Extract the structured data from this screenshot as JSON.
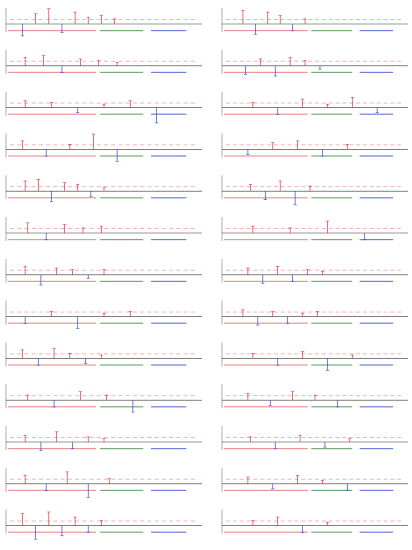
{
  "figure": {
    "caption": ""
  },
  "colors": {
    "positive": "#e0303a",
    "negative": "#2f4bd0",
    "baseline": "#333333",
    "grid_label": "#e66a6a",
    "mass_label": "#3a8a3a",
    "info_text": "#2f4bd0"
  },
  "chart_data": [
    {
      "type": "stem",
      "panel": "left-1",
      "x": [
        108,
        118,
        128,
        138,
        148,
        158,
        168,
        178
      ],
      "y": [
        -0.35,
        0.3,
        0.45,
        -0.25,
        0.35,
        0.2,
        0.25,
        0.15
      ]
    },
    {
      "type": "stem",
      "panel": "right-1",
      "x": [
        112,
        122,
        132,
        142,
        152,
        162
      ],
      "y": [
        0.4,
        -0.3,
        0.35,
        0.25,
        -0.2,
        0.15
      ]
    },
    {
      "type": "stem",
      "panel": "left-2",
      "x": [
        110,
        124,
        138,
        152,
        166,
        180
      ],
      "y": [
        0.25,
        0.3,
        -0.2,
        0.2,
        0.15,
        0.1
      ]
    },
    {
      "type": "stem",
      "panel": "right-2",
      "x": [
        114,
        126,
        138,
        150,
        162,
        174
      ],
      "y": [
        -0.25,
        0.2,
        -0.3,
        0.25,
        0.15,
        -0.1
      ]
    },
    {
      "type": "stem",
      "panel": "left-3",
      "x": [
        110,
        130,
        150,
        170,
        190,
        210
      ],
      "y": [
        0.2,
        0.15,
        -0.15,
        0.1,
        0.2,
        -0.45
      ]
    },
    {
      "type": "stem",
      "panel": "right-3",
      "x": [
        120,
        140,
        160,
        180,
        200,
        220
      ],
      "y": [
        0.15,
        -0.2,
        0.25,
        0.1,
        0.3,
        -0.15
      ]
    },
    {
      "type": "stem",
      "panel": "left-4",
      "x": [
        108,
        126,
        144,
        162,
        180
      ],
      "y": [
        0.25,
        -0.2,
        0.15,
        0.45,
        -0.35
      ]
    },
    {
      "type": "stem",
      "panel": "right-4",
      "x": [
        116,
        136,
        156,
        176,
        196
      ],
      "y": [
        -0.15,
        0.2,
        0.25,
        -0.2,
        0.15
      ]
    },
    {
      "type": "stem",
      "panel": "left-5",
      "x": [
        110,
        120,
        130,
        140,
        150,
        160,
        170
      ],
      "y": [
        0.3,
        0.35,
        -0.3,
        0.25,
        0.2,
        -0.15,
        0.1
      ]
    },
    {
      "type": "stem",
      "panel": "right-5",
      "x": [
        118,
        130,
        142,
        154,
        166
      ],
      "y": [
        0.2,
        -0.25,
        0.3,
        -0.4,
        0.15
      ]
    },
    {
      "type": "stem",
      "panel": "left-6",
      "x": [
        112,
        126,
        140,
        154,
        168
      ],
      "y": [
        0.3,
        -0.2,
        0.25,
        0.15,
        0.2
      ]
    },
    {
      "type": "stem",
      "panel": "right-6",
      "x": [
        120,
        150,
        180,
        210
      ],
      "y": [
        0.2,
        0.15,
        0.35,
        -0.2
      ]
    },
    {
      "type": "stem",
      "panel": "left-7",
      "x": [
        110,
        122,
        134,
        146,
        158,
        170
      ],
      "y": [
        0.25,
        -0.3,
        0.2,
        0.15,
        -0.1,
        0.15
      ]
    },
    {
      "type": "stem",
      "panel": "right-7",
      "x": [
        116,
        128,
        140,
        152,
        164,
        176
      ],
      "y": [
        0.2,
        -0.25,
        0.25,
        -0.2,
        0.15,
        0.1
      ]
    },
    {
      "type": "stem",
      "panel": "left-8",
      "x": [
        110,
        130,
        150,
        170,
        190
      ],
      "y": [
        -0.2,
        0.15,
        -0.35,
        0.1,
        0.15
      ]
    },
    {
      "type": "stem",
      "panel": "right-8",
      "x": [
        112,
        124,
        136,
        148,
        160,
        172
      ],
      "y": [
        0.2,
        -0.25,
        0.15,
        -0.2,
        0.1,
        0.15
      ]
    },
    {
      "type": "stem",
      "panel": "left-9",
      "x": [
        108,
        120,
        132,
        144,
        156,
        168
      ],
      "y": [
        0.25,
        -0.2,
        0.3,
        0.15,
        -0.15,
        0.1
      ]
    },
    {
      "type": "stem",
      "panel": "right-9",
      "x": [
        120,
        140,
        160,
        180,
        200
      ],
      "y": [
        0.15,
        -0.2,
        0.2,
        -0.35,
        0.1
      ]
    },
    {
      "type": "stem",
      "panel": "left-10",
      "x": [
        112,
        132,
        152,
        172,
        192
      ],
      "y": [
        0.15,
        -0.2,
        0.25,
        0.15,
        -0.35
      ]
    },
    {
      "type": "stem",
      "panel": "right-10",
      "x": [
        116,
        134,
        152,
        170,
        188
      ],
      "y": [
        0.2,
        -0.15,
        0.25,
        0.15,
        -0.2
      ]
    },
    {
      "type": "stem",
      "panel": "left-11",
      "x": [
        110,
        122,
        134,
        146,
        158,
        170
      ],
      "y": [
        0.2,
        -0.25,
        0.3,
        -0.2,
        0.15,
        0.1
      ]
    },
    {
      "type": "stem",
      "panel": "right-11",
      "x": [
        118,
        138,
        158,
        178,
        198
      ],
      "y": [
        0.15,
        -0.2,
        0.2,
        -0.15,
        0.1
      ]
    },
    {
      "type": "stem",
      "panel": "left-12",
      "x": [
        110,
        126,
        142,
        158,
        174
      ],
      "y": [
        0.25,
        -0.2,
        0.35,
        -0.4,
        0.15
      ]
    },
    {
      "type": "stem",
      "panel": "right-12",
      "x": [
        116,
        136,
        156,
        176,
        196
      ],
      "y": [
        0.2,
        -0.15,
        0.25,
        0.1,
        -0.2
      ]
    },
    {
      "type": "stem",
      "panel": "left-13",
      "x": [
        108,
        118,
        128,
        138,
        148,
        158,
        168
      ],
      "y": [
        0.35,
        -0.4,
        0.4,
        -0.3,
        0.25,
        -0.2,
        0.15
      ]
    },
    {
      "type": "stem",
      "panel": "right-13",
      "x": [
        120,
        140,
        160,
        180
      ],
      "y": [
        0.15,
        0.25,
        -0.2,
        0.1
      ]
    }
  ]
}
